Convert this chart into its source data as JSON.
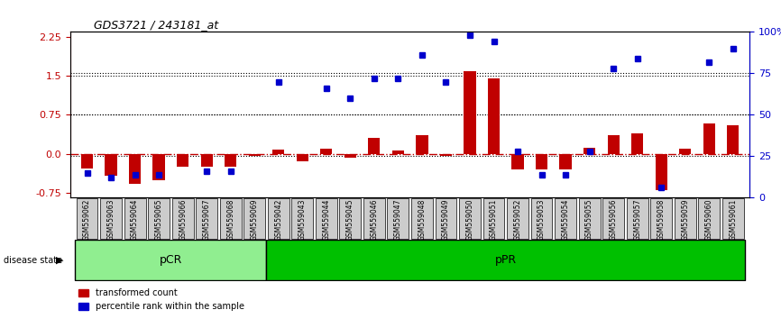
{
  "title": "GDS3721 / 243181_at",
  "samples": [
    "GSM559062",
    "GSM559063",
    "GSM559064",
    "GSM559065",
    "GSM559066",
    "GSM559067",
    "GSM559068",
    "GSM559069",
    "GSM559042",
    "GSM559043",
    "GSM559044",
    "GSM559045",
    "GSM559046",
    "GSM559047",
    "GSM559048",
    "GSM559049",
    "GSM559050",
    "GSM559051",
    "GSM559052",
    "GSM559053",
    "GSM559054",
    "GSM559055",
    "GSM559056",
    "GSM559057",
    "GSM559058",
    "GSM559059",
    "GSM559060",
    "GSM559061"
  ],
  "transformed_count": [
    -0.28,
    -0.42,
    -0.58,
    -0.52,
    -0.25,
    -0.25,
    -0.25,
    -0.05,
    0.08,
    -0.15,
    0.1,
    -0.08,
    0.3,
    0.07,
    0.35,
    -0.05,
    1.6,
    1.45,
    -0.3,
    -0.3,
    -0.3,
    0.12,
    0.35,
    0.4,
    -0.7,
    0.1,
    0.58,
    0.55
  ],
  "percentile_rank": [
    15,
    12,
    14,
    14,
    null,
    16,
    16,
    null,
    70,
    null,
    66,
    60,
    72,
    72,
    86,
    70,
    98,
    94,
    28,
    14,
    14,
    28,
    78,
    84,
    6,
    null,
    82,
    90
  ],
  "pCR_count": 8,
  "pPR_count": 20,
  "ylim": [
    -0.85,
    2.35
  ],
  "right_ylim": [
    0,
    100
  ],
  "dotted_lines": [
    1.5,
    0.75
  ],
  "bar_color": "#c00000",
  "dot_color": "#0000cc",
  "zero_line_color": "#c00000",
  "pcr_color": "#90ee90",
  "ppr_color": "#00c000",
  "bg_color": "#cccccc",
  "left_ticks": [
    -0.75,
    0.0,
    0.75,
    1.5,
    2.25
  ],
  "right_ticks": [
    0,
    25,
    50,
    75,
    100
  ],
  "right_tick_labels": [
    "0",
    "25",
    "50",
    "75",
    "100%"
  ]
}
